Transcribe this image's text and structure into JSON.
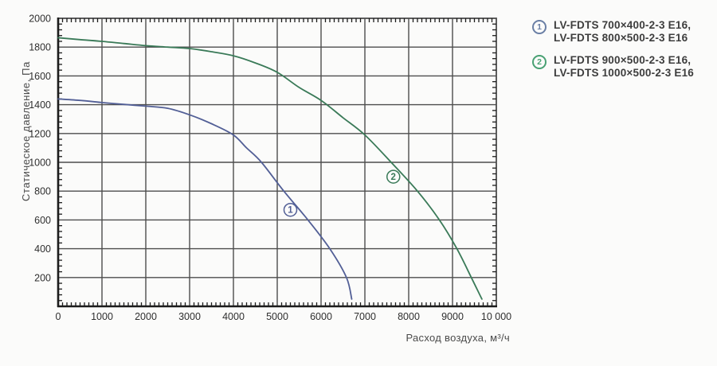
{
  "legend": {
    "items": [
      {
        "number": "1",
        "color": "#6a7fa5",
        "lines": [
          "LV-FDTS 700×400-2-3 E16,",
          "LV-FDTS 800×500-2-3 E16"
        ]
      },
      {
        "number": "2",
        "color": "#49a173",
        "lines": [
          "LV-FDTS 900×500-2-3 E16,",
          "LV-FDTS 1000×500-2-3 E16"
        ]
      }
    ]
  },
  "chart_data": {
    "type": "line",
    "title": "",
    "xlabel": "Расход воздуха, м³/ч",
    "ylabel": "Статическое давление, Па",
    "xlim": [
      0,
      10000
    ],
    "ylim": [
      0,
      2000
    ],
    "grid": true,
    "legend_position": "right",
    "x_ticks": [
      0,
      1000,
      2000,
      3000,
      4000,
      5000,
      6000,
      7000,
      8000,
      9000,
      10000
    ],
    "x_tick_labels": [
      "0",
      "1000",
      "2000",
      "3000",
      "4000",
      "5000",
      "6000",
      "7000",
      "8000",
      "9000",
      "10 000"
    ],
    "y_ticks": [
      200,
      400,
      600,
      800,
      1000,
      1200,
      1400,
      1600,
      1800,
      2000
    ],
    "y_tick_labels": [
      "200",
      "400",
      "600",
      "800",
      "1000",
      "1200",
      "1400",
      "1600",
      "1800",
      "2000"
    ],
    "x_minor_step": 100,
    "y_minor_step": 40,
    "colors": {
      "grid": "#4d4d4d",
      "axis": "#1c1c1c",
      "plot_bg": "#fbfbfa"
    },
    "series": [
      {
        "name": "1",
        "label": "LV-FDTS 700×400-2-3 E16, LV-FDTS 800×500-2-3 E16",
        "color": "#525f96",
        "marker_at": [
          5300,
          670
        ],
        "points": [
          [
            0,
            1440
          ],
          [
            500,
            1430
          ],
          [
            1000,
            1415
          ],
          [
            1500,
            1402
          ],
          [
            2000,
            1390
          ],
          [
            2500,
            1375
          ],
          [
            3000,
            1330
          ],
          [
            3500,
            1268
          ],
          [
            4000,
            1190
          ],
          [
            4300,
            1100
          ],
          [
            4640,
            1000
          ],
          [
            5150,
            800
          ],
          [
            5700,
            600
          ],
          [
            6200,
            400
          ],
          [
            6580,
            200
          ],
          [
            6700,
            50
          ]
        ]
      },
      {
        "name": "2",
        "label": "LV-FDTS 900×500-2-3 E16, LV-FDTS 1000×500-2-3 E16",
        "color": "#3a7a58",
        "marker_at": [
          7650,
          900
        ],
        "points": [
          [
            0,
            1865
          ],
          [
            500,
            1852
          ],
          [
            1000,
            1840
          ],
          [
            1500,
            1825
          ],
          [
            2000,
            1810
          ],
          [
            2500,
            1800
          ],
          [
            3000,
            1790
          ],
          [
            3500,
            1768
          ],
          [
            4000,
            1740
          ],
          [
            4500,
            1690
          ],
          [
            5000,
            1625
          ],
          [
            5500,
            1520
          ],
          [
            6000,
            1430
          ],
          [
            6500,
            1310
          ],
          [
            7000,
            1190
          ],
          [
            7600,
            1000
          ],
          [
            8200,
            800
          ],
          [
            8700,
            600
          ],
          [
            9100,
            400
          ],
          [
            9430,
            200
          ],
          [
            9670,
            50
          ]
        ]
      }
    ]
  }
}
